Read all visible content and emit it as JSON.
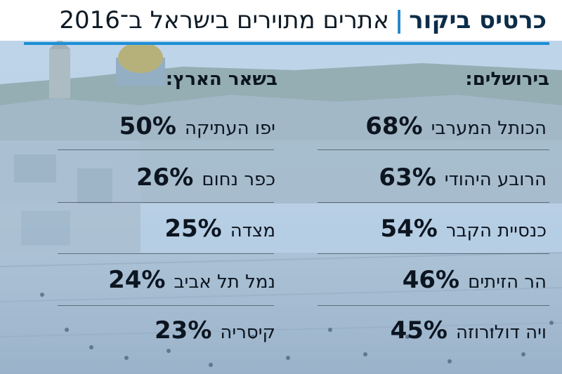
{
  "header": {
    "brand": "כרטיס ביקור",
    "separator": "|",
    "subtitle": "אתרים מתוירים בישראל ב־2016"
  },
  "jerusalem": {
    "title": "בירושלים:",
    "items": [
      {
        "name": "הכותל המערבי",
        "percent": "68%"
      },
      {
        "name": "הרובע היהודי",
        "percent": "63%"
      },
      {
        "name": "כנסיית הקבר",
        "percent": "54%"
      },
      {
        "name": "הר הזיתים",
        "percent": "46%"
      },
      {
        "name": "ויה דולורוזה",
        "percent": "45%"
      }
    ]
  },
  "rest_of_country": {
    "title": "בשאר הארץ:",
    "items": [
      {
        "name": "יפו העתיקה",
        "percent": "50%"
      },
      {
        "name": "כפר נחום",
        "percent": "26%"
      },
      {
        "name": "מצדה",
        "percent": "25%"
      },
      {
        "name": "נמל תל אביב",
        "percent": "24%"
      },
      {
        "name": "קיסריה",
        "percent": "23%"
      }
    ]
  },
  "colors": {
    "accent": "#1b8fd6",
    "header_bg": "#ffffff",
    "text": "#0c1520"
  }
}
